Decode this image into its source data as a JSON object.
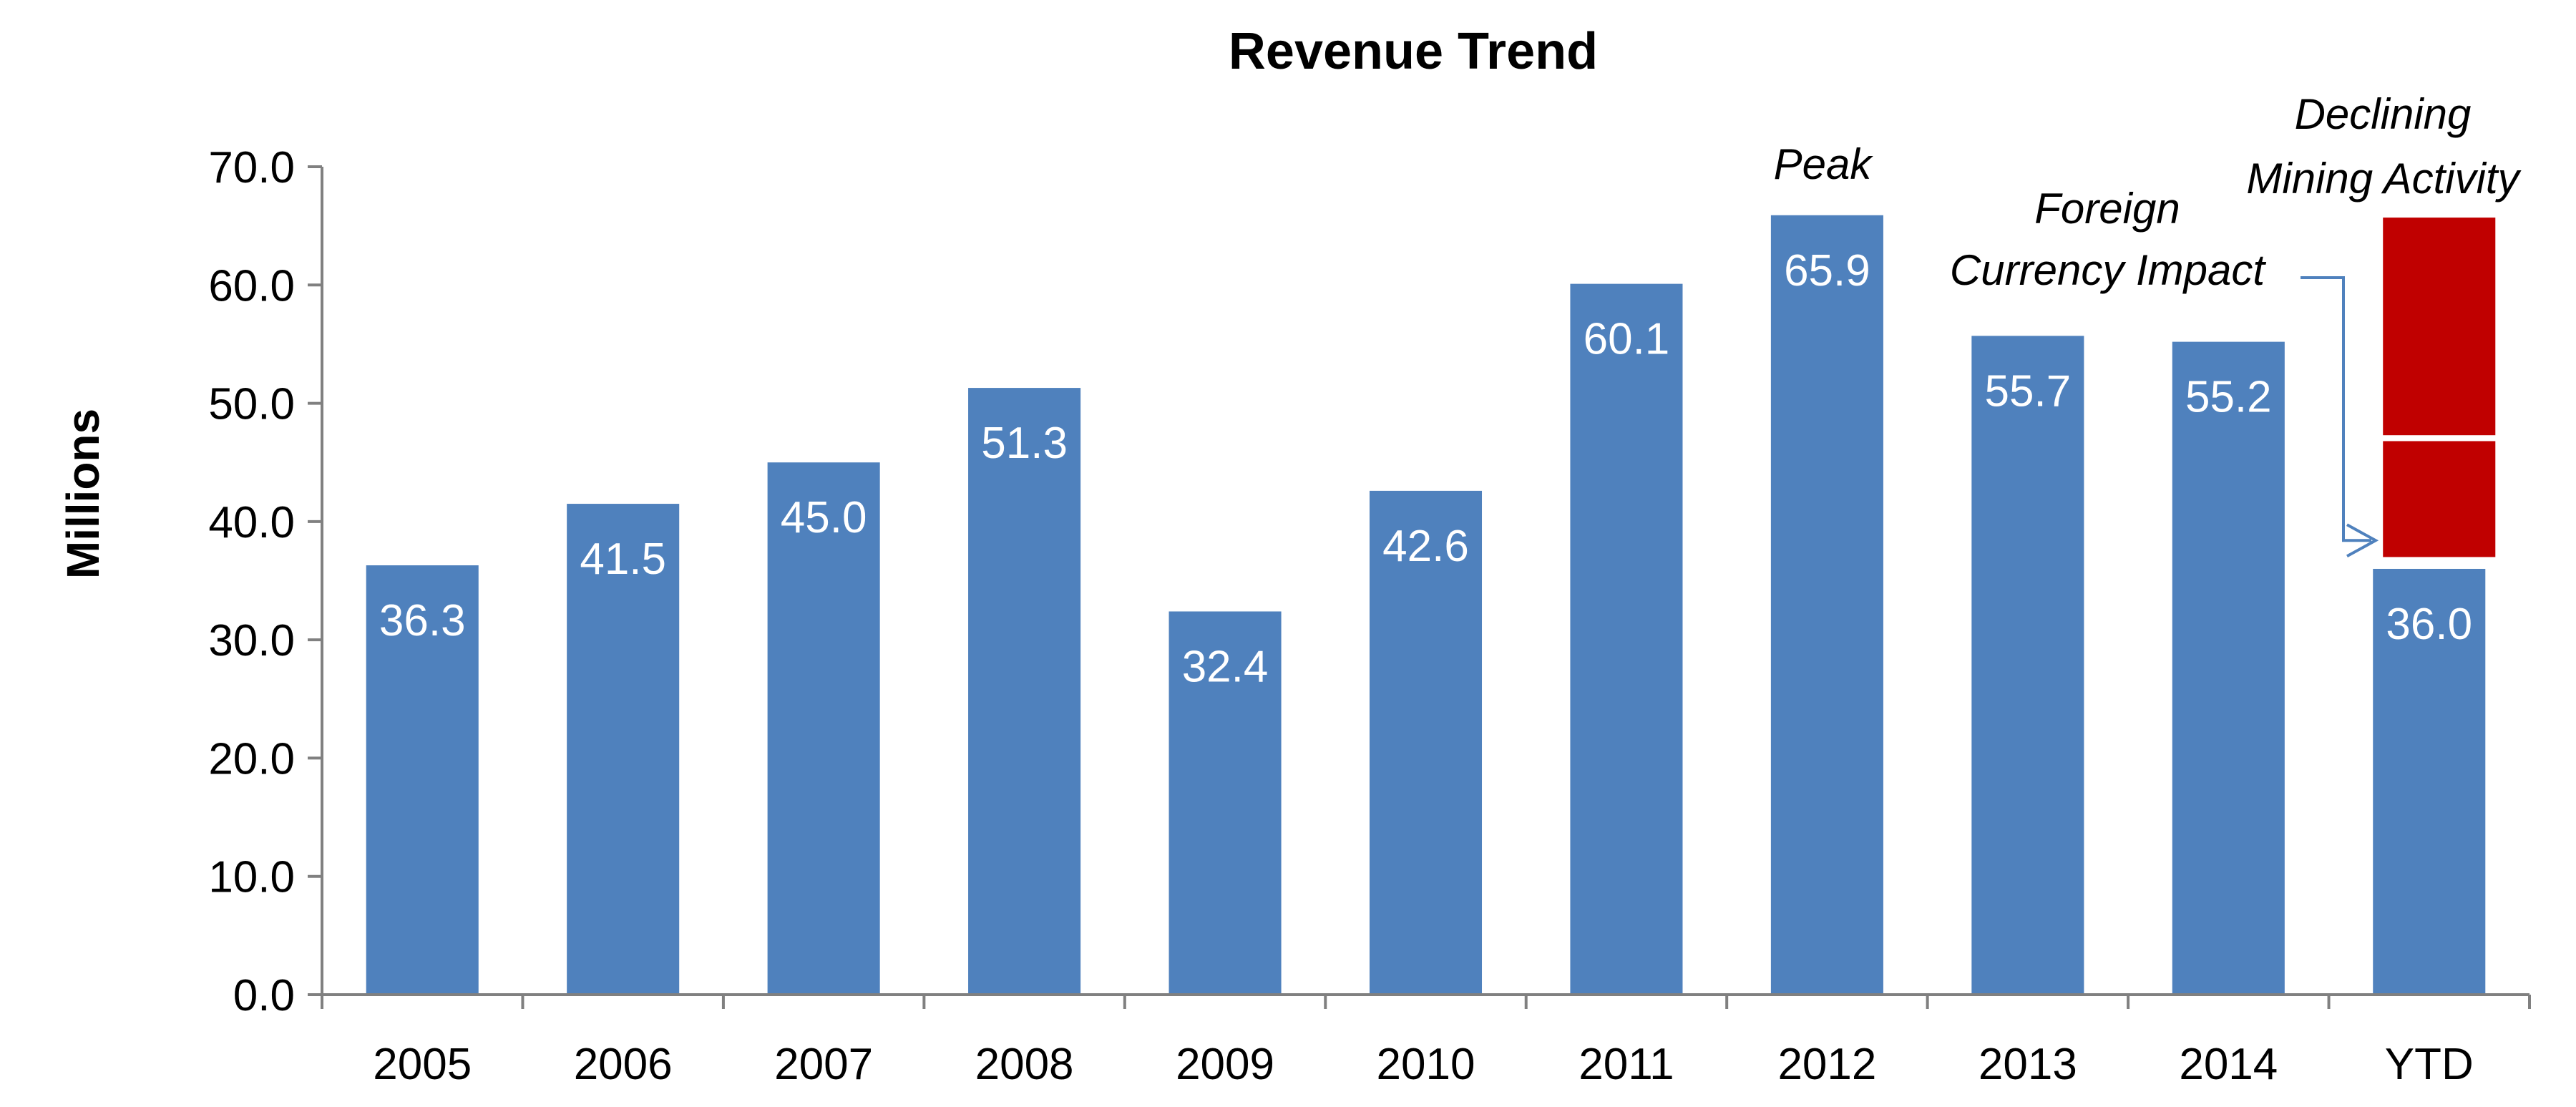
{
  "chart_data": {
    "type": "bar",
    "title": "Revenue Trend",
    "ylabel": "Millions",
    "xlabel": "",
    "ylim": [
      0,
      70
    ],
    "yticks": [
      "0.0",
      "10.0",
      "20.0",
      "30.0",
      "40.0",
      "50.0",
      "60.0",
      "70.0"
    ],
    "categories": [
      "2005",
      "2006",
      "2007",
      "2008",
      "2009",
      "2010",
      "2011",
      "2012",
      "2013",
      "2014",
      "YTD"
    ],
    "values": [
      36.3,
      41.5,
      45.0,
      51.3,
      32.4,
      42.6,
      60.1,
      65.9,
      55.7,
      55.2,
      36.0
    ],
    "value_labels": [
      "36.3",
      "41.5",
      "45.0",
      "51.3",
      "32.4",
      "42.6",
      "60.1",
      "65.9",
      "55.7",
      "55.2",
      "36.0"
    ],
    "bar_color": "#4F81BD",
    "stacked_segments": {
      "category": "YTD",
      "color": "#C00000",
      "segments": [
        {
          "from": 37.0,
          "to": 46.8
        },
        {
          "from": 47.3,
          "to": 65.7
        }
      ]
    },
    "annotations": {
      "peak": "Peak",
      "foreign_line1": "Foreign",
      "foreign_line2": "Currency Impact",
      "declining_line1": "Declining",
      "declining_line2": "Mining Activity"
    },
    "arrow_color": "#4F81BD",
    "grid": false,
    "legend": "none"
  }
}
